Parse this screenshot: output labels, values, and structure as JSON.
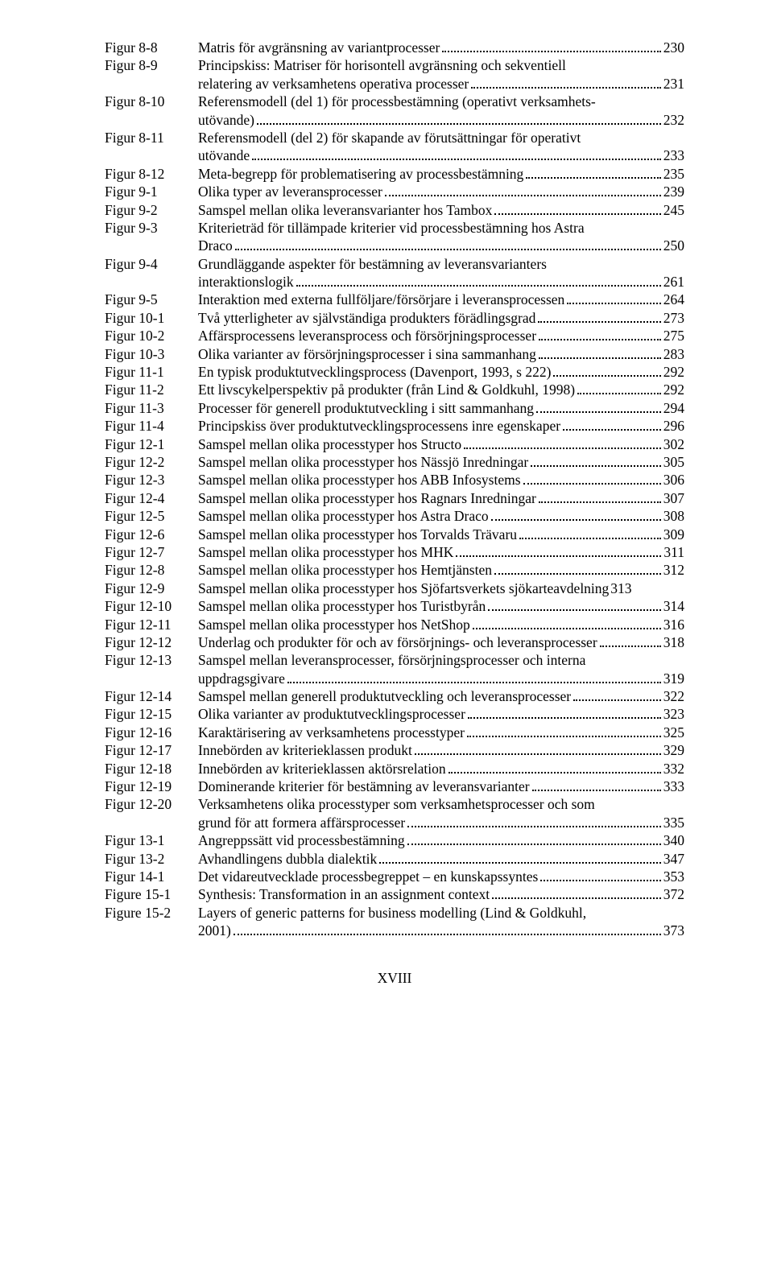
{
  "footer": "XVIII",
  "entries": [
    {
      "label": "Figur 8-8",
      "lines": [
        "Matris för avgränsning av variantprocesser"
      ],
      "page": "230"
    },
    {
      "label": "Figur 8-9",
      "lines": [
        "Principskiss: Matriser för horisontell avgränsning och  sekventiell",
        "relatering av verksamhetens operativa processer"
      ],
      "page": "231"
    },
    {
      "label": "Figur 8-10",
      "lines": [
        "Referensmodell (del 1) för processbestämning (operativt verksamhets-",
        "utövande)"
      ],
      "page": "232"
    },
    {
      "label": "Figur 8-11",
      "lines": [
        "Referensmodell (del 2) för skapande av förutsättningar för operativt",
        "utövande"
      ],
      "page": "233"
    },
    {
      "label": "Figur 8-12",
      "lines": [
        "Meta-begrepp för problematisering av processbestämning"
      ],
      "page": "235"
    },
    {
      "label": "Figur 9-1",
      "lines": [
        "Olika typer av leveransprocesser"
      ],
      "page": "239"
    },
    {
      "label": "Figur 9-2",
      "lines": [
        "Samspel mellan olika leveransvarianter hos Tambox"
      ],
      "page": "245"
    },
    {
      "label": "Figur 9-3",
      "lines": [
        "Kriterieträd för tillämpade kriterier vid processbestämning hos Astra",
        "Draco"
      ],
      "page": "250"
    },
    {
      "label": "Figur 9-4",
      "lines": [
        "Grundläggande aspekter för bestämning av leveransvarianters",
        "interaktionslogik"
      ],
      "page": "261"
    },
    {
      "label": "Figur 9-5",
      "lines": [
        "Interaktion med externa fullföljare/försörjare i leveransprocessen"
      ],
      "page": "264"
    },
    {
      "label": "Figur 10-1",
      "lines": [
        "Två ytterligheter av självständiga produkters förädlingsgrad"
      ],
      "page": "273"
    },
    {
      "label": "Figur 10-2",
      "lines": [
        "Affärsprocessens leveransprocess och försörjningsprocesser"
      ],
      "page": "275"
    },
    {
      "label": "Figur 10-3",
      "lines": [
        "Olika varianter av försörjningsprocesser i sina sammanhang"
      ],
      "page": "283"
    },
    {
      "label": "Figur 11-1",
      "lines": [
        "En typisk produktutvecklingsprocess (Davenport, 1993, s 222)"
      ],
      "page": "292"
    },
    {
      "label": "Figur 11-2",
      "lines": [
        "Ett livscykelperspektiv på produkter (från Lind & Goldkuhl, 1998)"
      ],
      "page": "292"
    },
    {
      "label": "Figur 11-3",
      "lines": [
        "Processer för generell produktutveckling i sitt sammanhang"
      ],
      "page": "294"
    },
    {
      "label": "Figur 11-4",
      "lines": [
        "Principskiss över produktutvecklingsprocessens inre egenskaper"
      ],
      "page": "296"
    },
    {
      "label": "Figur 12-1",
      "lines": [
        "Samspel mellan olika processtyper hos Structo"
      ],
      "page": "302"
    },
    {
      "label": "Figur 12-2",
      "lines": [
        "Samspel mellan olika processtyper hos Nässjö Inredningar"
      ],
      "page": "305"
    },
    {
      "label": "Figur 12-3",
      "lines": [
        "Samspel mellan olika processtyper hos ABB Infosystems"
      ],
      "page": "306"
    },
    {
      "label": "Figur 12-4",
      "lines": [
        "Samspel mellan olika processtyper hos Ragnars Inredningar"
      ],
      "page": "307"
    },
    {
      "label": "Figur 12-5",
      "lines": [
        "Samspel mellan olika processtyper hos Astra Draco"
      ],
      "page": "308"
    },
    {
      "label": "Figur 12-6",
      "lines": [
        "Samspel mellan olika processtyper hos Torvalds Trävaru"
      ],
      "page": "309"
    },
    {
      "label": "Figur 12-7",
      "lines": [
        "Samspel mellan olika processtyper hos MHK"
      ],
      "page": "311"
    },
    {
      "label": "Figur 12-8",
      "lines": [
        "Samspel mellan olika processtyper hos Hemtjänsten"
      ],
      "page": "312"
    },
    {
      "label": "Figur 12-9",
      "lines": [
        "Samspel mellan olika processtyper hos Sjöfartsverkets sjökarteavdelning"
      ],
      "page": "313",
      "tight": true
    },
    {
      "label": "Figur 12-10",
      "lines": [
        "Samspel mellan olika processtyper hos Turistbyrån"
      ],
      "page": "314"
    },
    {
      "label": "Figur 12-11",
      "lines": [
        "Samspel mellan olika processtyper hos NetShop"
      ],
      "page": "316"
    },
    {
      "label": "Figur 12-12",
      "lines": [
        "Underlag och produkter för och av försörjnings- och leveransprocesser"
      ],
      "page": "318"
    },
    {
      "label": "Figur 12-13",
      "lines": [
        "Samspel mellan leveransprocesser, försörjningsprocesser och interna",
        "uppdragsgivare"
      ],
      "page": "319"
    },
    {
      "label": "Figur 12-14",
      "lines": [
        "Samspel mellan generell produktutveckling och leveransprocesser"
      ],
      "page": "322"
    },
    {
      "label": "Figur 12-15",
      "lines": [
        "Olika varianter av produktutvecklingsprocesser"
      ],
      "page": "323"
    },
    {
      "label": "Figur 12-16",
      "lines": [
        "Karaktärisering av verksamhetens processtyper"
      ],
      "page": "325"
    },
    {
      "label": "Figur 12-17",
      "lines": [
        "Innebörden av kriterieklassen produkt"
      ],
      "page": "329"
    },
    {
      "label": "Figur 12-18",
      "lines": [
        "Innebörden av kriterieklassen aktörsrelation"
      ],
      "page": "332"
    },
    {
      "label": "Figur 12-19",
      "lines": [
        "Dominerande kriterier för bestämning av leveransvarianter"
      ],
      "page": "333"
    },
    {
      "label": "Figur 12-20",
      "lines": [
        "Verksamhetens olika processtyper som verksamhetsprocesser och som",
        "grund för att formera affärsprocesser"
      ],
      "page": "335"
    },
    {
      "label": "Figur 13-1",
      "lines": [
        "Angreppssätt vid processbestämning"
      ],
      "page": "340"
    },
    {
      "label": "Figur 13-2",
      "lines": [
        "Avhandlingens dubbla dialektik"
      ],
      "page": "347"
    },
    {
      "label": "Figur 14-1",
      "lines": [
        "Det vidareutvecklade processbegreppet – en kunskapssyntes"
      ],
      "page": "353"
    },
    {
      "label": "Figure 15-1",
      "lines": [
        "Synthesis: Transformation in an assignment context"
      ],
      "page": "372"
    },
    {
      "label": "Figure 15-2",
      "lines": [
        "Layers of generic patterns for business modelling (Lind & Goldkuhl,",
        "2001)"
      ],
      "page": "373"
    }
  ]
}
